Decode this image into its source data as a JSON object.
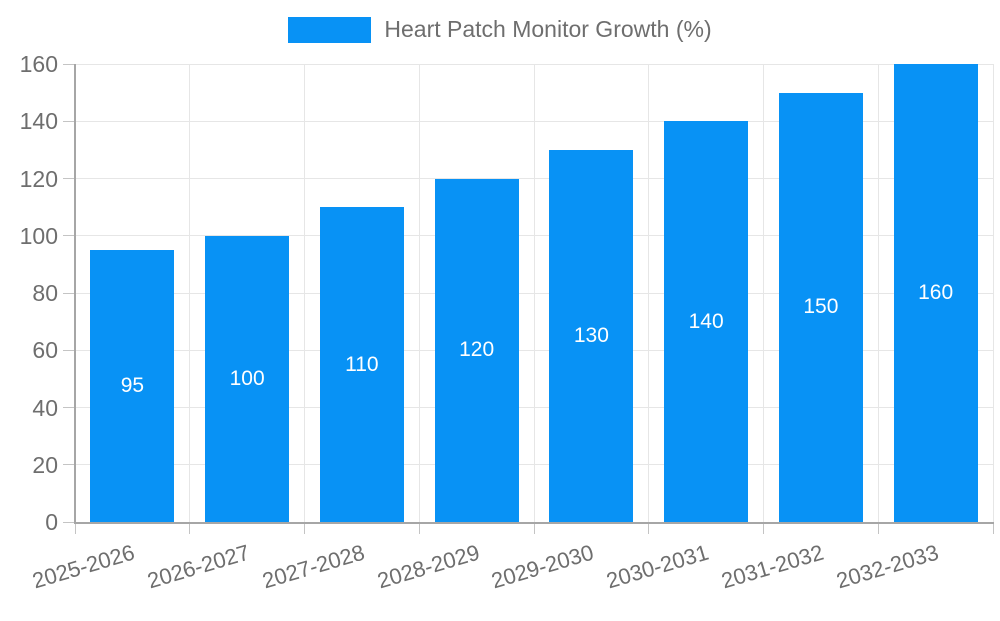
{
  "legend": {
    "label": "Heart Patch Monitor Growth (%)"
  },
  "chart_data": {
    "type": "bar",
    "title": "",
    "categories": [
      "2025-2026",
      "2026-2027",
      "2027-2028",
      "2028-2029",
      "2029-2030",
      "2030-2031",
      "2031-2032",
      "2032-2033"
    ],
    "values": [
      95,
      100,
      110,
      120,
      130,
      140,
      150,
      160
    ],
    "series": [
      {
        "name": "Heart Patch Monitor Growth (%)",
        "values": [
          95,
          100,
          110,
          120,
          130,
          140,
          150,
          160
        ]
      }
    ],
    "value_labels_shown": true,
    "xlabel": "",
    "ylabel": "",
    "ylim": [
      0,
      160
    ],
    "yticks": [
      0,
      20,
      40,
      60,
      80,
      100,
      120,
      140,
      160
    ],
    "grid": true,
    "legend_position": "top-center"
  },
  "colors": {
    "bar": "#0892f5",
    "value_label": "#ffffff",
    "gridline": "#e6e6e6",
    "axis": "#a6a6a6",
    "tick": "#c4c4c4",
    "tick_label_text": "#6e6e6e",
    "legend_text": "#6e6e6e",
    "background": "#ffffff"
  }
}
